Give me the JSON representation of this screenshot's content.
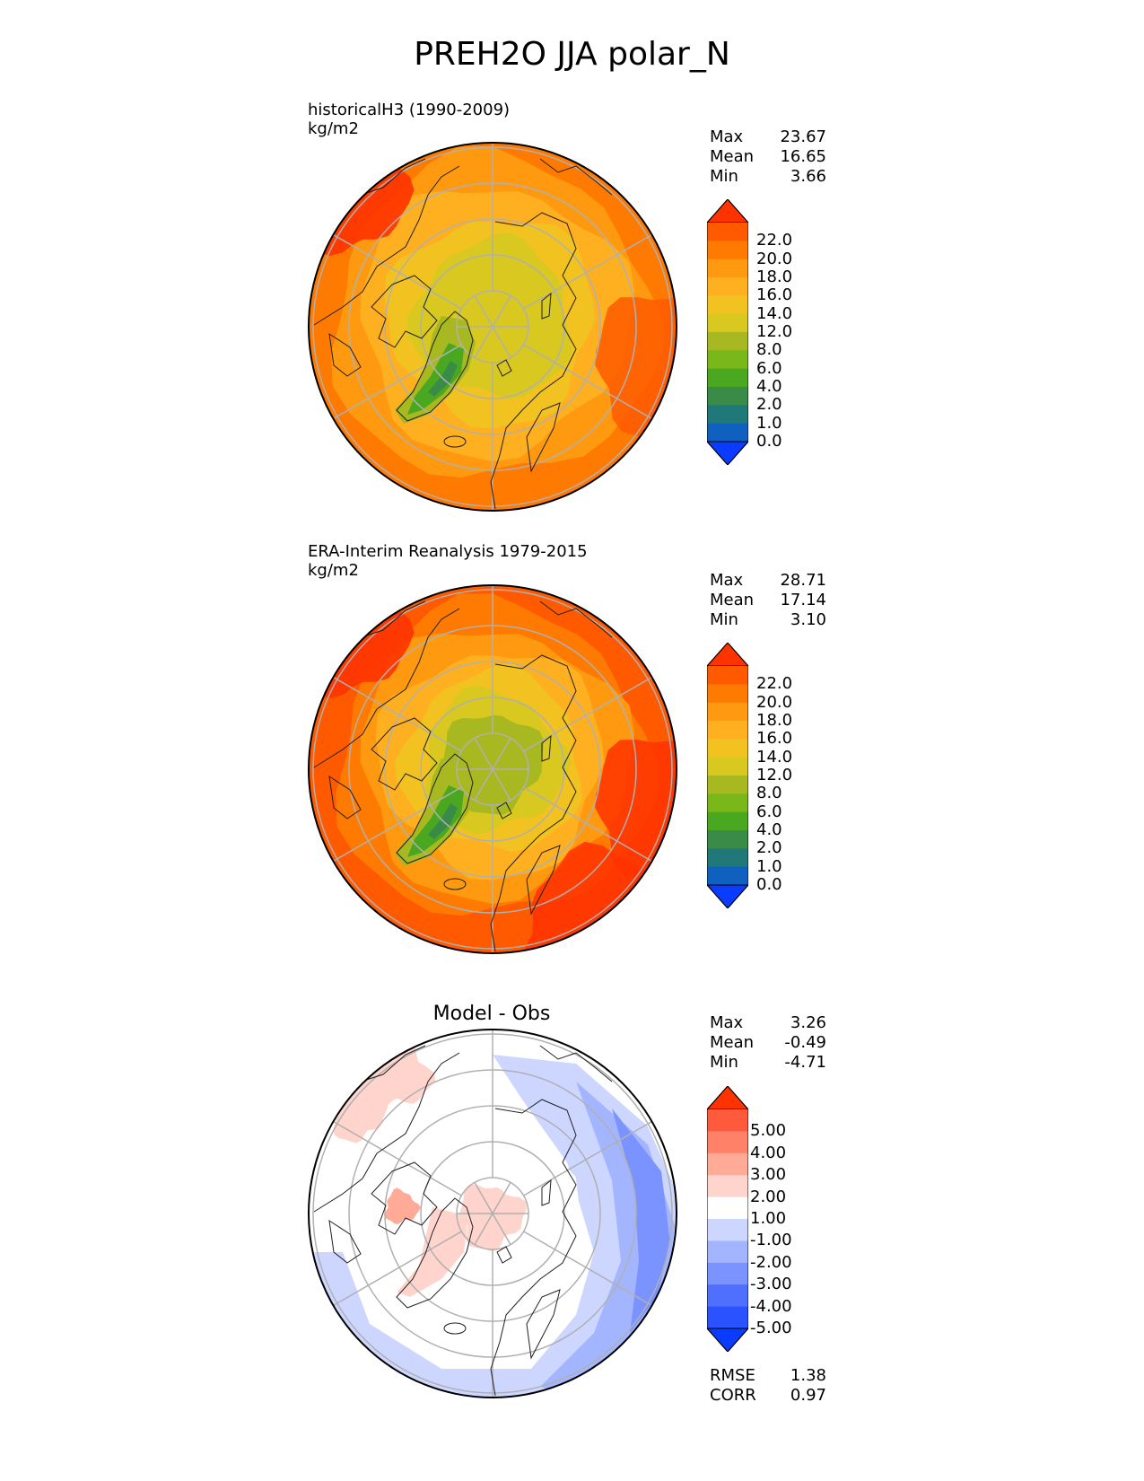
{
  "title": "PREH2O JJA polar_N",
  "panels": [
    {
      "id": "model",
      "title_lines": [
        "historicalH3 (1990-2009)",
        "kg/m2"
      ],
      "stats": [
        {
          "label": "Max",
          "value": "23.67"
        },
        {
          "label": "Mean",
          "value": "16.65"
        },
        {
          "label": "Min",
          "value": "3.66"
        }
      ],
      "colorbar": {
        "ticks": [
          "22.0",
          "20.0",
          "18.0",
          "16.0",
          "14.0",
          "12.0",
          "8.0",
          "6.0",
          "4.0",
          "2.0",
          "1.0",
          "0.0"
        ],
        "colors": [
          "#ff3300",
          "#ff5a00",
          "#ff7a00",
          "#ff9a10",
          "#ffb020",
          "#f2c220",
          "#d8c820",
          "#a8b820",
          "#7ab81a",
          "#4aa820",
          "#3a8a48",
          "#207878",
          "#1060c0",
          "#0a3cff"
        ]
      }
    },
    {
      "id": "obs",
      "title_lines": [
        "ERA-Interim Reanalysis 1979-2015",
        "kg/m2"
      ],
      "stats": [
        {
          "label": "Max",
          "value": "28.71"
        },
        {
          "label": "Mean",
          "value": "17.14"
        },
        {
          "label": "Min",
          "value": "3.10"
        }
      ],
      "colorbar": {
        "ticks": [
          "22.0",
          "20.0",
          "18.0",
          "16.0",
          "14.0",
          "12.0",
          "8.0",
          "6.0",
          "4.0",
          "2.0",
          "1.0",
          "0.0"
        ],
        "colors": [
          "#ff3300",
          "#ff5a00",
          "#ff7a00",
          "#ff9a10",
          "#ffb020",
          "#f2c220",
          "#d8c820",
          "#a8b820",
          "#7ab81a",
          "#4aa820",
          "#3a8a48",
          "#207878",
          "#1060c0",
          "#0a3cff"
        ]
      }
    },
    {
      "id": "diff",
      "title": "Model - Obs",
      "stats": [
        {
          "label": "Max",
          "value": "3.26"
        },
        {
          "label": "Mean",
          "value": "-0.49"
        },
        {
          "label": "Min",
          "value": "-4.71"
        }
      ],
      "colorbar": {
        "ticks": [
          "5.00",
          "4.00",
          "3.00",
          "2.00",
          "1.00",
          "-1.00",
          "-2.00",
          "-3.00",
          "-4.00",
          "-5.00"
        ],
        "colors": [
          "#ff3300",
          "#ff5a3c",
          "#ff8268",
          "#ffab98",
          "#ffd4cc",
          "#ffffff",
          "#ccd6ff",
          "#a3b5ff",
          "#7a93ff",
          "#4f6fff",
          "#2a52ff",
          "#0a3cff"
        ]
      },
      "metrics": [
        {
          "label": "RMSE",
          "value": "1.38"
        },
        {
          "label": "CORR",
          "value": "0.97"
        }
      ]
    }
  ],
  "chart_data": [
    {
      "type": "heatmap",
      "title": "historicalH3 (1990-2009)",
      "units": "kg/m2",
      "projection": "polar north stereographic",
      "levels": [
        0,
        1,
        2,
        4,
        6,
        8,
        12,
        14,
        16,
        18,
        20,
        22
      ],
      "stats": {
        "max": 23.67,
        "mean": 16.65,
        "min": 3.66
      }
    },
    {
      "type": "heatmap",
      "title": "ERA-Interim Reanalysis 1979-2015",
      "units": "kg/m2",
      "projection": "polar north stereographic",
      "levels": [
        0,
        1,
        2,
        4,
        6,
        8,
        12,
        14,
        16,
        18,
        20,
        22
      ],
      "stats": {
        "max": 28.71,
        "mean": 17.14,
        "min": 3.1
      }
    },
    {
      "type": "heatmap",
      "title": "Model - Obs",
      "projection": "polar north stereographic",
      "levels": [
        -5,
        -4,
        -3,
        -2,
        -1,
        1,
        2,
        3,
        4,
        5
      ],
      "stats": {
        "max": 3.26,
        "mean": -0.49,
        "min": -4.71
      },
      "metrics": {
        "rmse": 1.38,
        "corr": 0.97
      }
    }
  ]
}
